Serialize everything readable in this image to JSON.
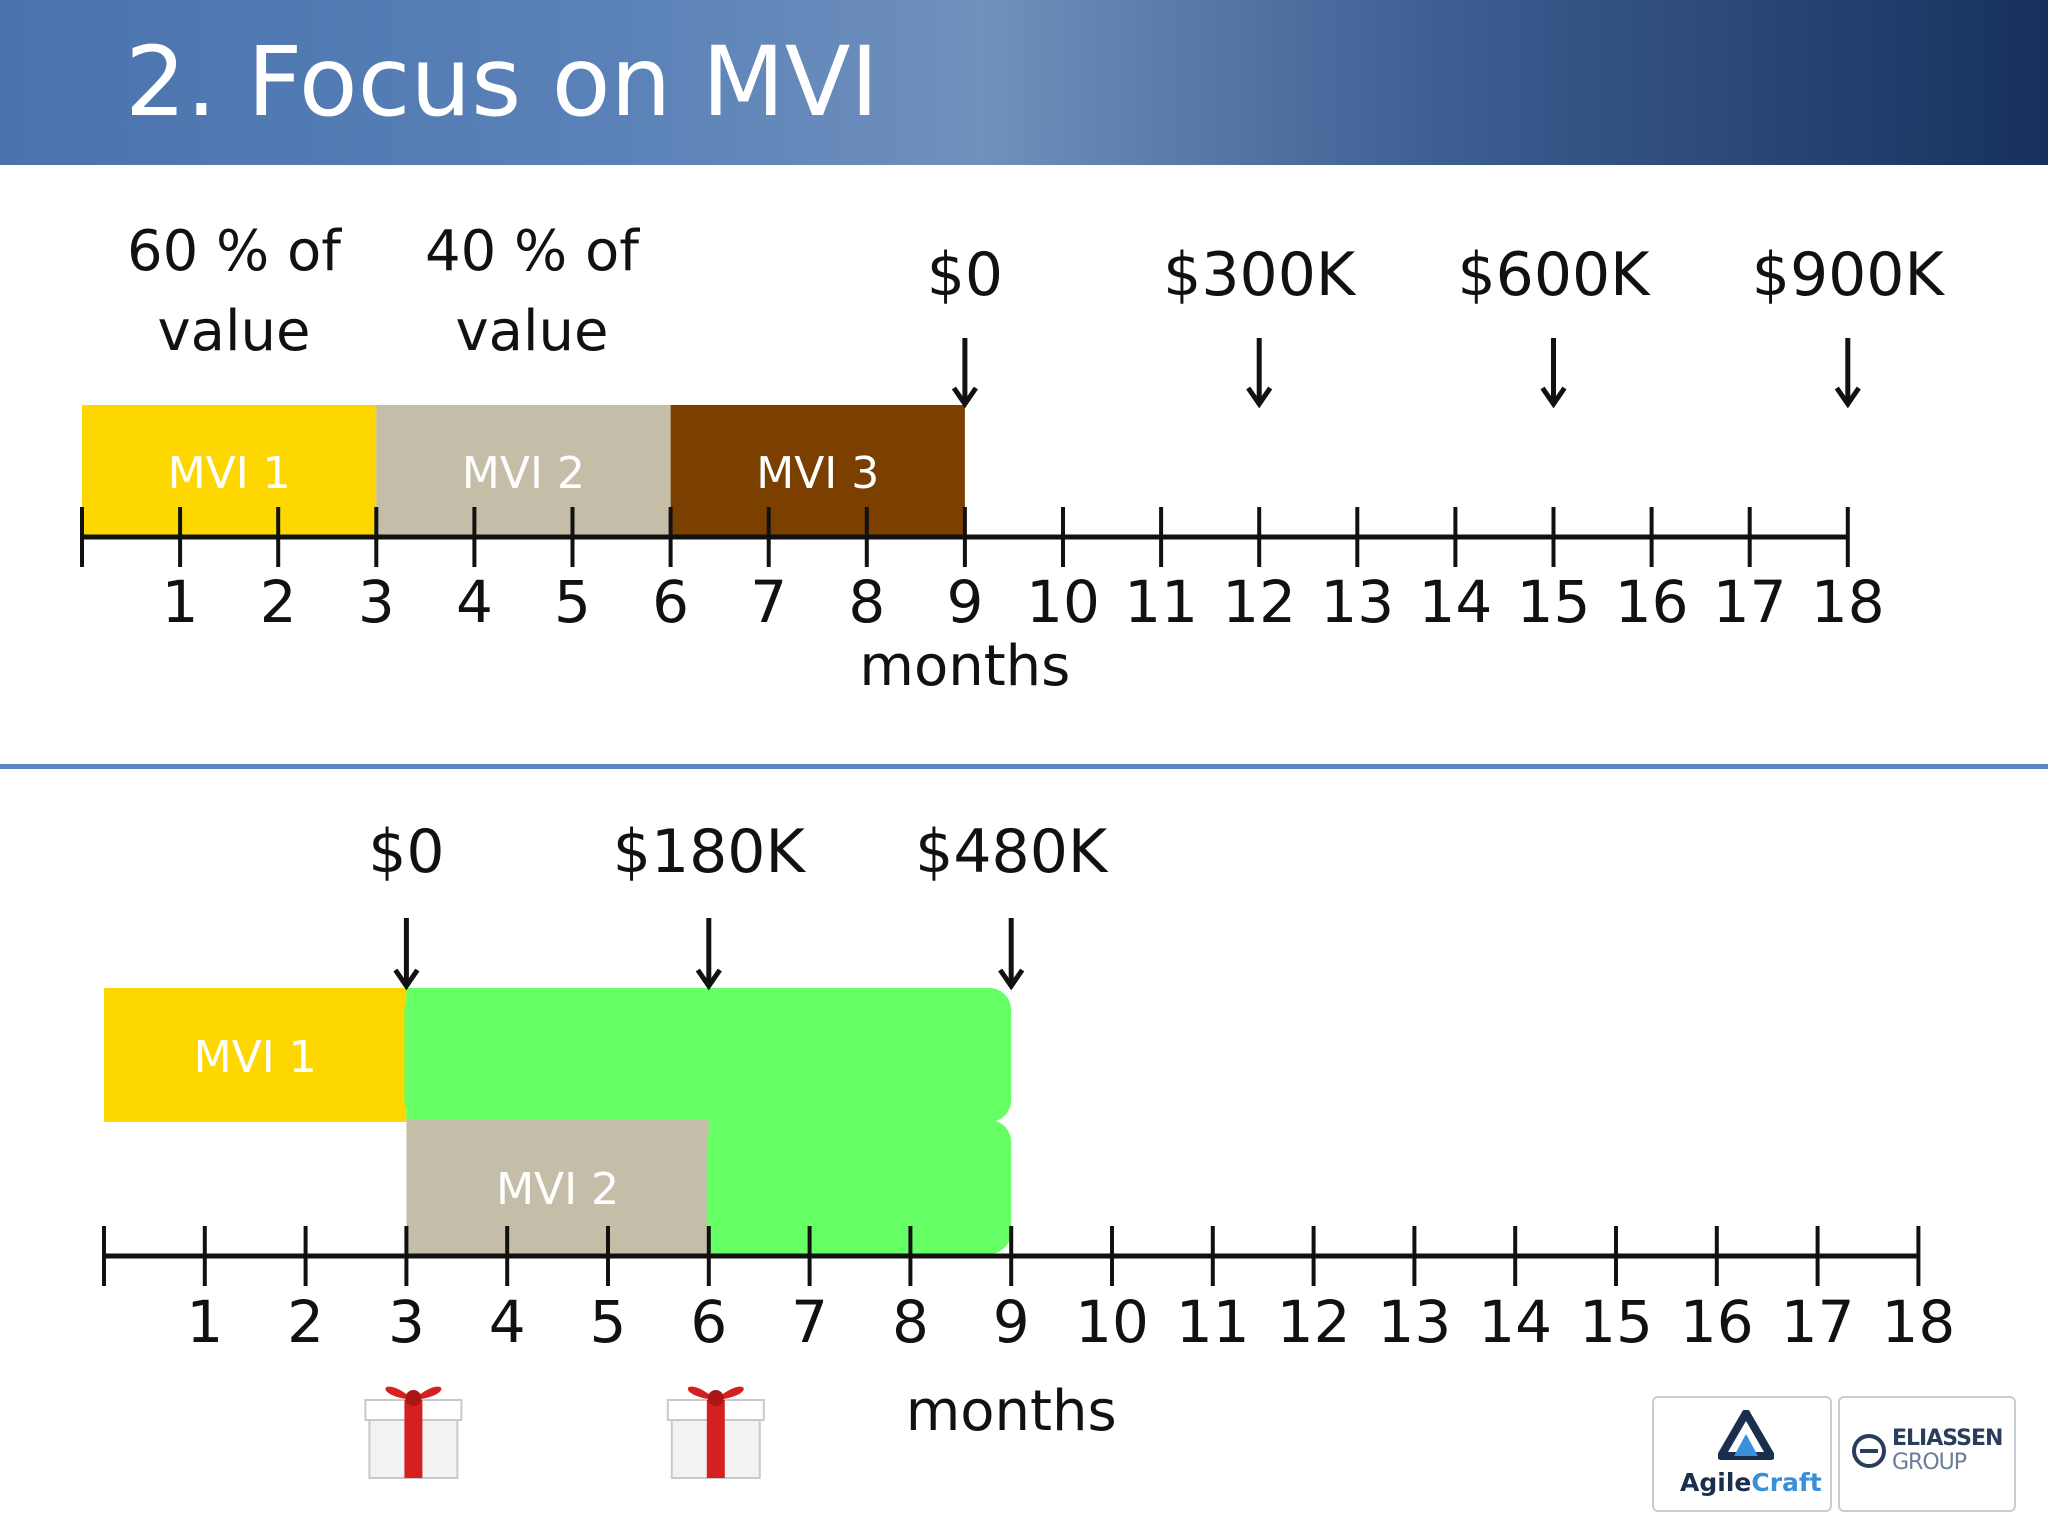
{
  "title": "2. Focus on MVI",
  "top": {
    "value_notes": [
      {
        "line1": "60 % of",
        "line2": "value"
      },
      {
        "line1": "40 % of",
        "line2": "value"
      }
    ],
    "value_markers": [
      {
        "label": "$0",
        "month": 9
      },
      {
        "label": "$300K",
        "month": 12
      },
      {
        "label": "$600K",
        "month": 15
      },
      {
        "label": "$900K",
        "month": 18
      }
    ],
    "bars": [
      {
        "label": "MVI 1",
        "start": 0,
        "end": 3,
        "color": "#FFD700"
      },
      {
        "label": "MVI 2",
        "start": 3,
        "end": 6,
        "color": "#C4BEA8"
      },
      {
        "label": "MVI 3",
        "start": 6,
        "end": 9,
        "color": "#7B3F00"
      }
    ],
    "axis_label": "months",
    "ticks": [
      "1",
      "2",
      "3",
      "4",
      "5",
      "6",
      "7",
      "8",
      "9",
      "10",
      "11",
      "12",
      "13",
      "14",
      "15",
      "16",
      "17",
      "18"
    ]
  },
  "bottom": {
    "value_markers": [
      {
        "label": "$0",
        "month": 3
      },
      {
        "label": "$180K",
        "month": 6
      },
      {
        "label": "$480K",
        "month": 9
      }
    ],
    "bars": [
      {
        "label": "MVI 1",
        "start": 0,
        "end": 3,
        "row": 0,
        "color": "#FFD700"
      },
      {
        "label": "",
        "start": 3,
        "end": 9,
        "row": 0,
        "color": "#66FF66"
      },
      {
        "label": "MVI 2",
        "start": 3,
        "end": 6,
        "row": 1,
        "color": "#C4BEA8"
      },
      {
        "label": "",
        "start": 6,
        "end": 9,
        "row": 1,
        "color": "#66FF66"
      }
    ],
    "gift_months": [
      3,
      6
    ],
    "axis_label": "months",
    "ticks": [
      "1",
      "2",
      "3",
      "4",
      "5",
      "6",
      "7",
      "8",
      "9",
      "10",
      "11",
      "12",
      "13",
      "14",
      "15",
      "16",
      "17",
      "18"
    ]
  },
  "logos": {
    "agilecraft": {
      "prefix": "Agile",
      "suffix": "Craft",
      "icon": "triangle-logo-icon"
    },
    "eliassen": {
      "line1": "ELIASSEN",
      "line2": "GROUP",
      "icon": "circle-e-logo-icon"
    }
  },
  "colors": {
    "header_start": "#4a73ad",
    "header_end": "#17305e",
    "divider": "#5b86c0",
    "gift_red": "#d42020"
  }
}
